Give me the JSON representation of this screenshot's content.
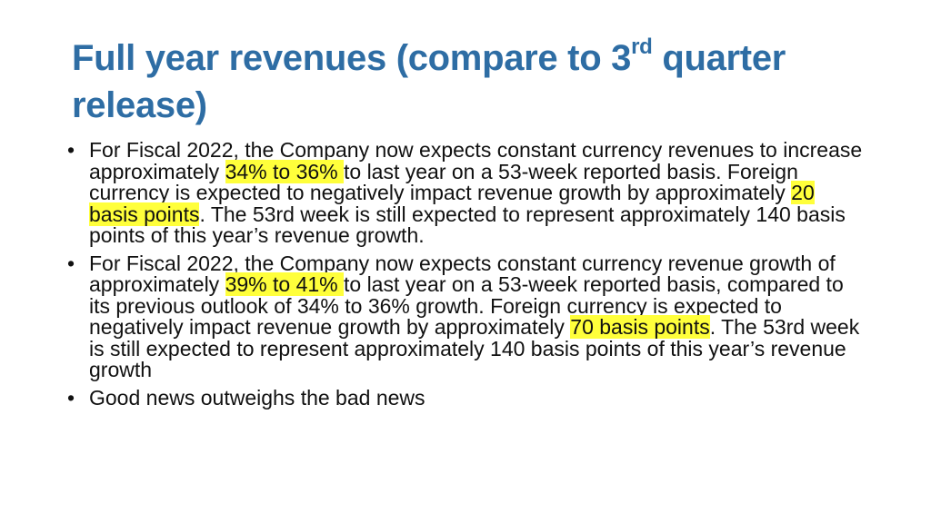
{
  "slide": {
    "title": {
      "part1": "Full year revenues (compare to 3",
      "superscript": "rd",
      "part2": " quarter release)"
    },
    "bullet_char": "•",
    "bullets": [
      {
        "text_1": "For Fiscal 2022, the Company now expects constant currency revenues to increase approximately ",
        "highlight_1": "34% to 36% ",
        "text_2": "to last year on a 53-week reported basis. Foreign currency is expected to negatively impact revenue growth by approximately ",
        "highlight_2": "20 basis points",
        "text_3": ". The 53rd week is still expected to represent approximately 140 basis points of this year’s revenue growth."
      },
      {
        "text_1": "For Fiscal 2022, the Company now expects constant currency revenue growth of approximately ",
        "highlight_1": "39% to 41% ",
        "text_2": "to last year on a 53-week reported basis, compared to its previous outlook of 34% to 36% growth. Foreign currency is expected to negatively impact revenue growth by approximately ",
        "highlight_2": "70 basis points",
        "text_3": ". The 53rd week is still expected to represent approximately 140 basis points of this year’s revenue growth"
      },
      {
        "text_1": "Good news outweighs the bad news"
      }
    ],
    "colors": {
      "title": "#2e6da4",
      "highlight": "#ffff3b",
      "text": "#111111"
    }
  }
}
